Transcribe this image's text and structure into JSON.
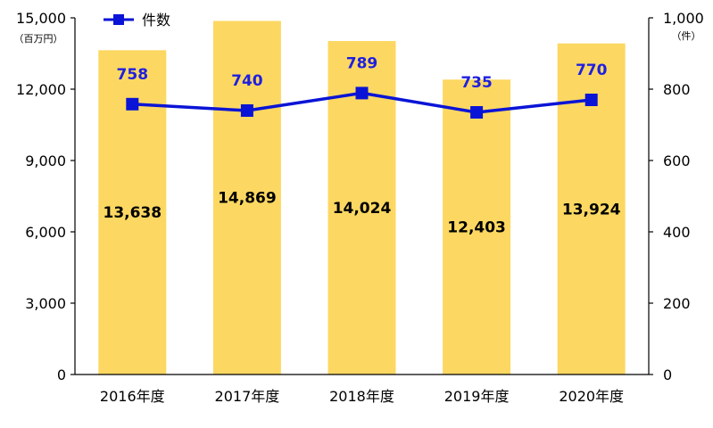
{
  "chart_data": {
    "type": "bar+line",
    "categories": [
      "2016年度",
      "2017年度",
      "2018年度",
      "2019年度",
      "2020年度"
    ],
    "series": [
      {
        "name": "",
        "type": "bar",
        "axis": "left",
        "values": [
          13638,
          14869,
          14024,
          12403,
          13924
        ],
        "labels": [
          "13,638",
          "14,869",
          "14,024",
          "12,403",
          "13,924"
        ],
        "color": "#fcd862"
      },
      {
        "name": "件数",
        "type": "line",
        "axis": "right",
        "values": [
          758,
          740,
          789,
          735,
          770
        ],
        "labels": [
          "758",
          "740",
          "789",
          "735",
          "770"
        ],
        "color": "#0a14d6"
      }
    ],
    "y_left": {
      "unit": "（百万円）",
      "range": [
        0,
        15000
      ],
      "ticks": [
        0,
        3000,
        6000,
        9000,
        12000,
        15000
      ],
      "tick_labels": [
        "0",
        "3,000",
        "6,000",
        "9,000",
        "12,000",
        "15,000"
      ]
    },
    "y_right": {
      "unit": "（件）",
      "range": [
        0,
        1000
      ],
      "ticks": [
        0,
        200,
        400,
        600,
        800,
        1000
      ],
      "tick_labels": [
        "0",
        "200",
        "400",
        "600",
        "800",
        "1,000"
      ]
    },
    "grid": false,
    "legend": {
      "position": "top-left",
      "entries": [
        "件数"
      ]
    }
  }
}
